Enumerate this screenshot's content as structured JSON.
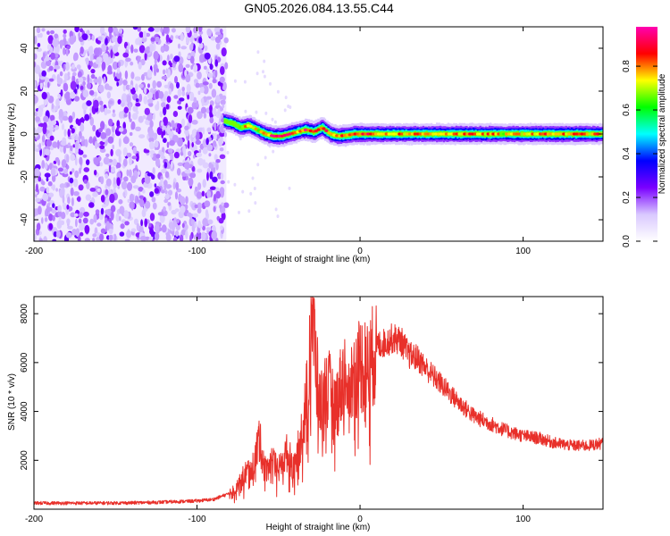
{
  "figure": {
    "title": "GN05.2026.084.13.55.C44"
  },
  "chart_data": [
    {
      "type": "heatmap",
      "title": "GN05.2026.084.13.55.C44",
      "xlabel": "Height of straight line (km)",
      "ylabel": "Frequency (Hz)",
      "xlim": [
        -200,
        149
      ],
      "ylim": [
        -50,
        50
      ],
      "xticks": [
        -200,
        -100,
        0,
        100
      ],
      "xtick_labels": [
        "-200",
        "-100",
        "0",
        "100"
      ],
      "yticks": [
        40,
        20,
        0,
        -20,
        -40
      ],
      "ytick_labels": [
        "40",
        "20",
        "0",
        "-20",
        "-40"
      ],
      "noise_region": {
        "x_from": -200,
        "x_to": -82,
        "description_values": "scattered low amplitude 0.1-0.4"
      },
      "signal_trace": {
        "x": [
          -83,
          -78,
          -73,
          -68,
          -63,
          -58,
          -53,
          -48,
          -43,
          -38,
          -33,
          -28,
          -23,
          -18,
          -13,
          -8,
          -3,
          0,
          10,
          20,
          30,
          40,
          50,
          60,
          70,
          80,
          90,
          100,
          110,
          120,
          130,
          140,
          149
        ],
        "freq": [
          6,
          5,
          3,
          4,
          2,
          0,
          -1,
          -1,
          0,
          1,
          2,
          1,
          3,
          0,
          -1,
          -0.5,
          0,
          0,
          0,
          0,
          0,
          0,
          0,
          0,
          0,
          0,
          0,
          0,
          0,
          0,
          0,
          0,
          0
        ],
        "peak_amplitude": [
          0.5,
          0.6,
          0.8,
          0.9,
          0.8,
          0.9,
          1.0,
          1.0,
          1.0,
          0.9,
          1.0,
          1.0,
          1.0,
          0.9,
          0.9,
          1.0,
          1.0,
          1.0,
          0.9,
          0.9,
          0.9,
          0.9,
          0.9,
          0.9,
          0.9,
          0.9,
          0.8,
          0.9,
          0.9,
          0.9,
          0.9,
          0.9,
          0.9
        ]
      },
      "colorbar": {
        "label": "Normalized spectral amplitude",
        "range": [
          0,
          0.98
        ],
        "ticks": [
          0.0,
          0.2,
          0.4,
          0.6,
          0.8
        ],
        "tick_labels": [
          "0.0",
          "0.2",
          "0.4",
          "0.6",
          "0.8"
        ],
        "colormap": [
          "#ffffff",
          "#d9c8ff",
          "#7a00ff",
          "#0000ff",
          "#00ffff",
          "#00ff00",
          "#ffff00",
          "#ff0000",
          "#ff00b0"
        ]
      }
    },
    {
      "type": "line",
      "xlabel": "Height of straight line (km)",
      "ylabel": "SNR (10 * v/v)",
      "xlim": [
        -200,
        149
      ],
      "ylim": [
        0,
        8700
      ],
      "xticks": [
        -200,
        -100,
        0,
        100
      ],
      "xtick_labels": [
        "-200",
        "-100",
        "0",
        "100"
      ],
      "yticks": [
        8000,
        6000,
        4000,
        2000
      ],
      "ytick_labels": [
        "8000",
        "6000",
        "4000",
        "2000"
      ],
      "line_color": "#e8302a",
      "series": [
        {
          "name": "SNR",
          "x": [
            -200,
            -180,
            -160,
            -140,
            -120,
            -100,
            -90,
            -80,
            -75,
            -70,
            -65,
            -62,
            -58,
            -55,
            -50,
            -45,
            -40,
            -35,
            -32,
            -30,
            -25,
            -20,
            -15,
            -10,
            -5,
            0,
            5,
            10,
            15,
            20,
            25,
            30,
            35,
            40,
            50,
            60,
            70,
            80,
            90,
            100,
            110,
            120,
            130,
            140,
            149
          ],
          "y": [
            250,
            250,
            250,
            260,
            290,
            340,
            400,
            650,
            1000,
            1500,
            1800,
            2900,
            1600,
            2000,
            1600,
            2300,
            1700,
            3400,
            5000,
            8700,
            4200,
            5000,
            4200,
            5500,
            5200,
            6000,
            5700,
            6700,
            6800,
            7000,
            6900,
            6300,
            6200,
            5800,
            5100,
            4400,
            3800,
            3500,
            3200,
            3000,
            2900,
            2700,
            2600,
            2600,
            2700
          ]
        }
      ]
    }
  ]
}
